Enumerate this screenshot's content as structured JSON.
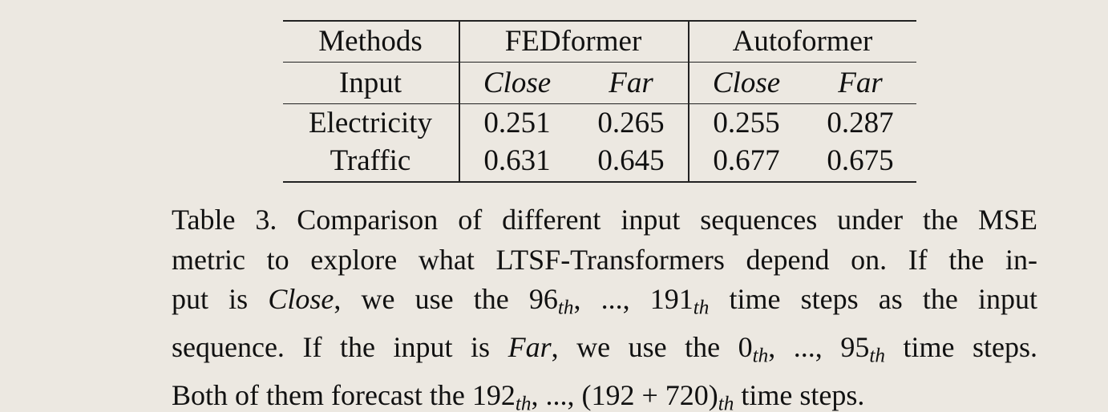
{
  "table": {
    "header": {
      "methods_label": "Methods",
      "groups": [
        "FEDformer",
        "Autoformer"
      ]
    },
    "input_row": {
      "label": "Input",
      "columns": [
        "Close",
        "Far",
        "Close",
        "Far"
      ]
    },
    "rows": [
      {
        "name": "Electricity",
        "values": [
          "0.251",
          "0.265",
          "0.255",
          "0.287"
        ]
      },
      {
        "name": "Traffic",
        "values": [
          "0.631",
          "0.645",
          "0.677",
          "0.675"
        ]
      }
    ]
  },
  "caption": {
    "line1": "Table 3. Comparison of different input sequences under the MSE",
    "line2": "metric to explore what LTSF-Transformers depend on. If the in-",
    "line3_pre": "put is ",
    "line3_close": "Close",
    "line3_mid": ", we use the 96",
    "line3_sub1": "th",
    "line3_dots": ", ..., 191",
    "line3_sub2": "th",
    "line3_post": " time steps as the input",
    "line4_pre": "sequence. If the input is ",
    "line4_far": "Far",
    "line4_mid": ", we use the 0",
    "line4_sub1": "th",
    "line4_dots": ", ..., 95",
    "line4_sub2": "th",
    "line4_post": " time steps.",
    "line5_pre": "Both of them forecast the 192",
    "line5_sub1": "th",
    "line5_dots": ", ..., (192 + 720)",
    "line5_sub2": "th",
    "line5_post": " time steps."
  }
}
